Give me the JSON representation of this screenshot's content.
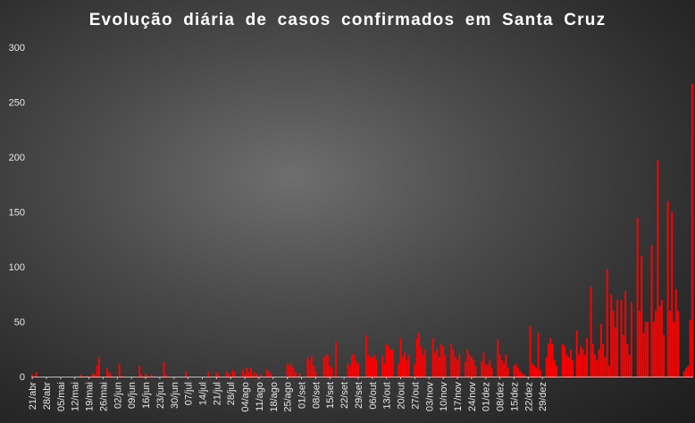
{
  "chart_data": {
    "type": "bar",
    "title": "Evolução  diária  de casos  confirmados  em Santa  Cruz",
    "xlabel": "",
    "ylabel": "",
    "ylim": [
      0,
      300
    ],
    "y_ticks": [
      0,
      50,
      100,
      150,
      200,
      250,
      300
    ],
    "x_tick_labels": [
      "21/abr",
      "28/abr",
      "05/mai",
      "12/mai",
      "19/mai",
      "26/mai",
      "02/jun",
      "09/jun",
      "16/jun",
      "23/jun",
      "30/jun",
      "07/jul",
      "14/jul",
      "21/jul",
      "28/jul",
      "04/ago",
      "11/ago",
      "18/ago",
      "25/ago",
      "01/set",
      "08/set",
      "15/set",
      "22/set",
      "29/set",
      "06/out",
      "13/out",
      "20/out",
      "27/out",
      "03/nov",
      "10/nov",
      "17/nov",
      "24/nov",
      "01/dez",
      "08/dez",
      "15/dez",
      "22/dez",
      "29/dez"
    ],
    "bar_color": "#ff0000",
    "grid": false,
    "values": [
      2,
      0,
      4,
      0,
      0,
      0,
      0,
      0,
      0,
      0,
      0,
      0,
      0,
      0,
      0,
      0,
      0,
      0,
      0,
      0,
      0,
      0,
      0,
      0,
      2,
      0,
      0,
      1,
      0,
      0,
      3,
      2,
      10,
      18,
      0,
      0,
      0,
      8,
      4,
      2,
      0,
      0,
      0,
      12,
      1,
      0,
      0,
      0,
      0,
      0,
      0,
      0,
      0,
      10,
      2,
      0,
      3,
      1,
      0,
      2,
      0,
      0,
      0,
      0,
      0,
      13,
      2,
      0,
      0,
      0,
      0,
      0,
      0,
      0,
      0,
      0,
      4,
      0,
      0,
      0,
      0,
      0,
      0,
      0,
      0,
      0,
      0,
      4,
      0,
      0,
      0,
      4,
      2,
      0,
      0,
      0,
      5,
      3,
      0,
      6,
      4,
      0,
      0,
      0,
      6,
      2,
      8,
      4,
      8,
      2,
      4,
      2,
      0,
      2,
      0,
      0,
      7,
      5,
      3,
      0,
      0,
      0,
      0,
      0,
      0,
      0,
      12,
      10,
      12,
      8,
      4,
      0,
      3,
      0,
      0,
      0,
      18,
      15,
      19,
      10,
      5,
      0,
      0,
      0,
      18,
      20,
      20,
      10,
      8,
      0,
      32,
      0,
      0,
      0,
      0,
      0,
      12,
      10,
      20,
      20,
      14,
      12,
      0,
      0,
      0,
      38,
      20,
      18,
      18,
      20,
      15,
      0,
      0,
      19,
      12,
      30,
      28,
      25,
      25,
      0,
      0,
      12,
      35,
      18,
      22,
      15,
      20,
      0,
      0,
      12,
      35,
      40,
      28,
      20,
      25,
      0,
      0,
      0,
      35,
      22,
      25,
      18,
      30,
      28,
      20,
      0,
      0,
      30,
      25,
      18,
      15,
      20,
      0,
      0,
      14,
      25,
      20,
      18,
      15,
      10,
      0,
      0,
      14,
      22,
      12,
      10,
      15,
      8,
      0,
      0,
      34,
      20,
      15,
      12,
      20,
      8,
      0,
      0,
      10,
      12,
      8,
      5,
      3,
      2,
      0,
      0,
      46,
      12,
      10,
      8,
      40,
      6,
      0,
      0,
      18,
      30,
      35,
      30,
      15,
      10,
      0,
      0,
      30,
      28,
      20,
      18,
      25,
      15,
      0,
      42,
      20,
      28,
      25,
      20,
      35,
      0,
      82,
      30,
      20,
      15,
      25,
      48,
      30,
      18,
      98,
      10,
      75,
      60,
      45,
      70,
      0,
      70,
      38,
      78,
      30,
      20,
      68,
      0,
      0,
      145,
      60,
      110,
      40,
      50,
      50,
      0,
      120,
      50,
      60,
      197,
      65,
      70,
      38,
      0,
      160,
      60,
      150,
      50,
      80,
      60,
      0,
      0,
      5,
      8,
      10,
      52,
      267
    ]
  }
}
